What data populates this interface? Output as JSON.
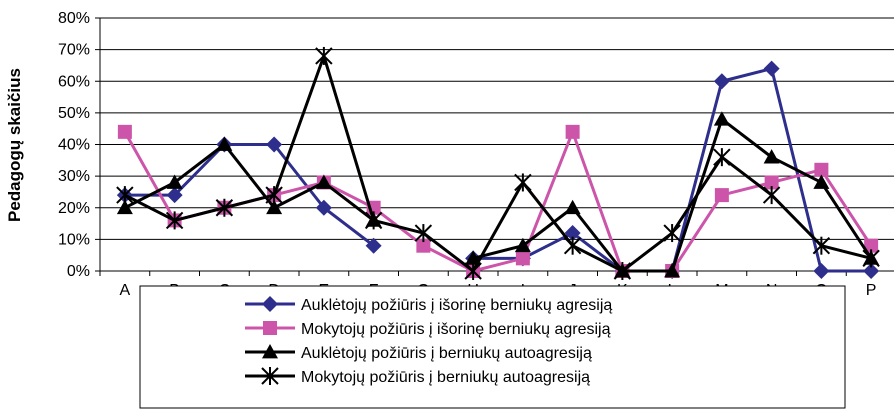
{
  "chart_data": {
    "type": "line",
    "ylabel": "Pedagogų skaičius",
    "xlabel": "",
    "categories": [
      "A",
      "B",
      "C",
      "D",
      "E",
      "F",
      "G",
      "H",
      "I",
      "J",
      "K",
      "L",
      "M",
      "N",
      "O",
      "P"
    ],
    "ylim": [
      0,
      80
    ],
    "yticks": [
      0,
      10,
      20,
      30,
      40,
      50,
      60,
      70,
      80
    ],
    "ytick_labels": [
      "0%",
      "10%",
      "20%",
      "30%",
      "40%",
      "50%",
      "60%",
      "70%",
      "80%"
    ],
    "grid": "horizontal",
    "legend_position": "bottom",
    "series": [
      {
        "name": "Auklėtojų požiūris į išorinę berniukų agresiją",
        "color": "#2e2e8c",
        "marker": "diamond",
        "values": [
          24,
          24,
          40,
          40,
          20,
          8,
          null,
          4,
          4,
          12,
          0,
          0,
          60,
          64,
          0,
          0
        ]
      },
      {
        "name": "Mokytojų požiūris į išorinę berniukų agresiją",
        "color": "#cc55aa",
        "marker": "square",
        "values": [
          44,
          16,
          20,
          24,
          28,
          20,
          8,
          0,
          4,
          44,
          0,
          0,
          24,
          28,
          32,
          8
        ]
      },
      {
        "name": "Auklėtojų požiūris į berniukų autoagresiją",
        "color": "#000000",
        "marker": "triangle",
        "values": [
          20,
          28,
          40,
          20,
          28,
          16,
          null,
          4,
          8,
          20,
          0,
          0,
          48,
          36,
          28,
          4
        ]
      },
      {
        "name": "Mokytojų požiūris į berniukų autoagresiją",
        "color": "#000000",
        "marker": "star",
        "values": [
          24,
          16,
          20,
          24,
          68,
          16,
          12,
          0,
          28,
          8,
          0,
          12,
          36,
          24,
          8,
          4
        ]
      }
    ]
  }
}
